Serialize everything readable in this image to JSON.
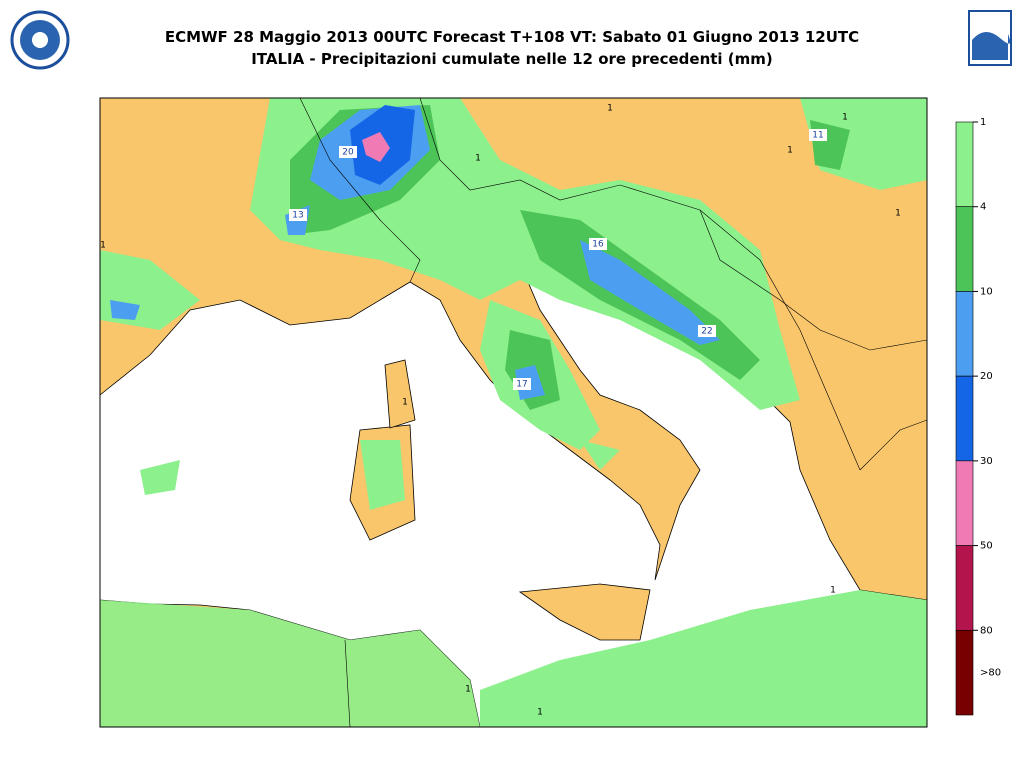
{
  "header": {
    "title_line1": "ECMWF 28 Maggio 2013 00UTC Forecast T+108 VT: Sabato 01 Giugno 2013 12UTC",
    "title_line2": "ITALIA - Precipitazioni cumulate nelle 12 ore precedenti (mm)"
  },
  "legend": {
    "labels": [
      "1",
      "4",
      "10",
      "20",
      "30",
      "50",
      "80",
      ">80"
    ],
    "colors": [
      "#8cf08c",
      "#4cc458",
      "#4c9ef0",
      "#1466e6",
      "#f07ab4",
      "#b4144c",
      "#780000"
    ]
  },
  "map": {
    "contour_labels": [
      "13",
      "11",
      "16",
      "22",
      "17",
      "20",
      "1",
      "1",
      "1",
      "1",
      "1",
      "1",
      "1",
      "1",
      "1",
      "1"
    ]
  }
}
